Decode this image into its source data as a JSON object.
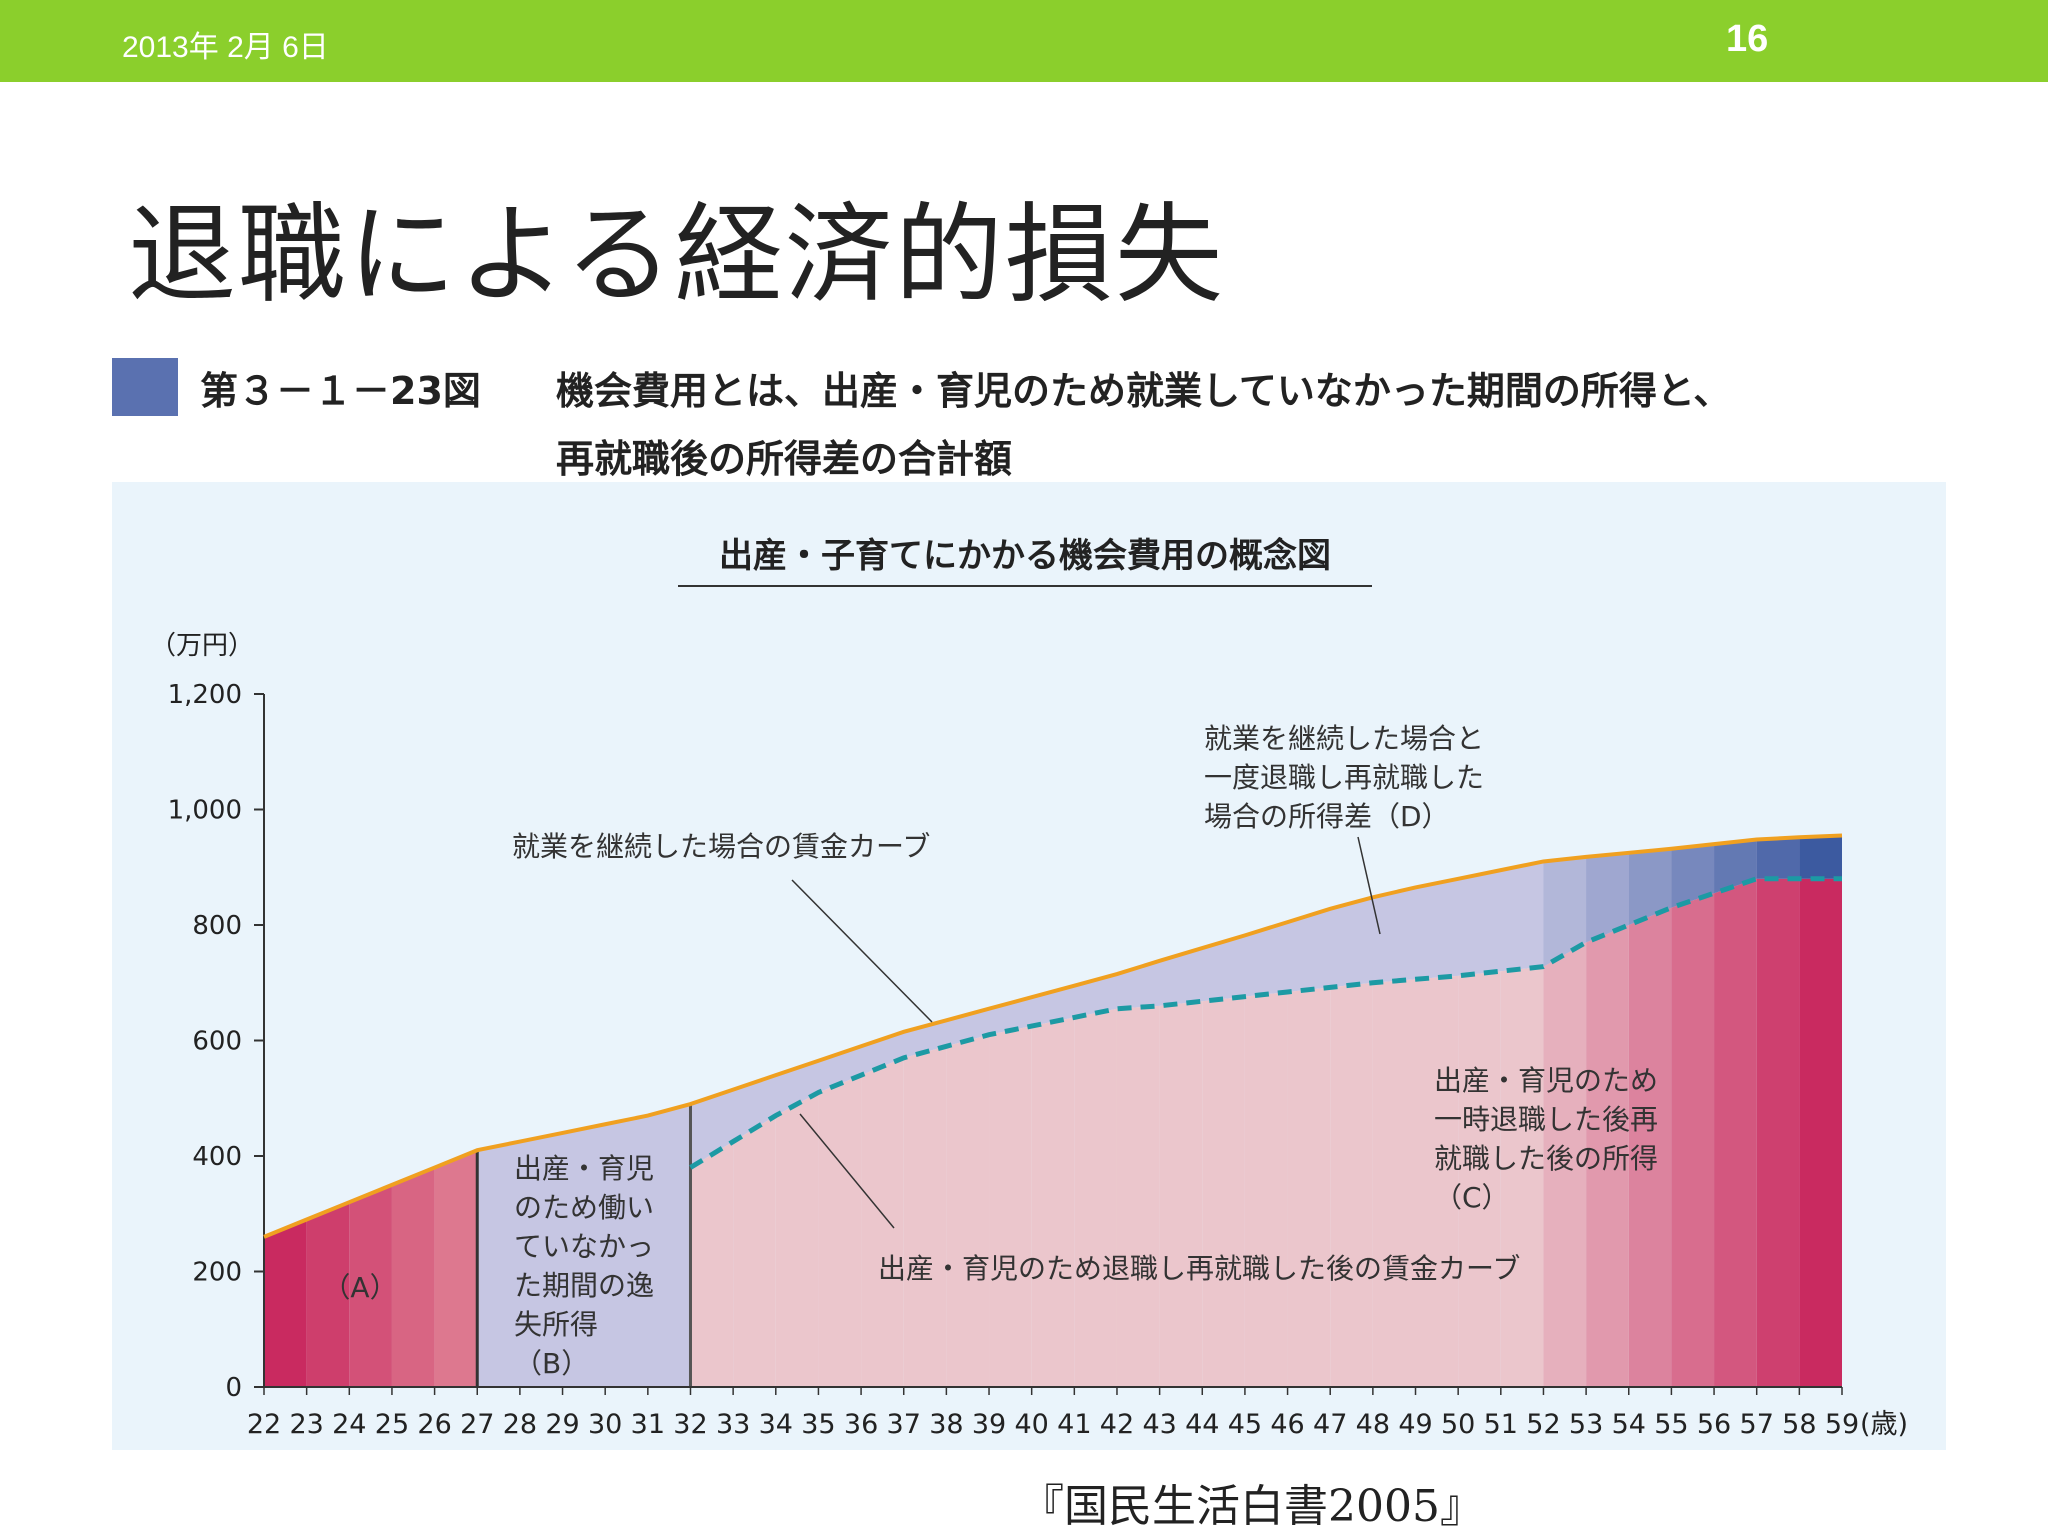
{
  "header": {
    "date": "2013年 2月 6日",
    "page_number": "16",
    "bar_color": "#8bcf2c"
  },
  "slide": {
    "title": "退職による経済的損失",
    "figure_number": "第３－１－23図",
    "caption_line1": "機会費用とは、出産・育児のため就業していなかった期間の所得と、",
    "caption_line2": "再就職後の所得差の合計額",
    "source": "『国民生活白書2005』"
  },
  "chart_data": {
    "type": "area",
    "title": "出産・子育てにかかる機会費用の概念図",
    "ylabel": "（万円）",
    "xlabel_unit": "(歳)",
    "ylim": [
      0,
      1200
    ],
    "yticks": [
      "0",
      "200",
      "400",
      "600",
      "800",
      "1,000",
      "1,200"
    ],
    "ytick_values": [
      0,
      200,
      400,
      600,
      800,
      1000,
      1200
    ],
    "x": [
      22,
      23,
      24,
      25,
      26,
      27,
      28,
      29,
      30,
      31,
      32,
      33,
      34,
      35,
      36,
      37,
      38,
      39,
      40,
      41,
      42,
      43,
      44,
      45,
      46,
      47,
      48,
      49,
      50,
      51,
      52,
      53,
      54,
      55,
      56,
      57,
      58,
      59
    ],
    "series": [
      {
        "name": "就業を継続した場合の賃金カーブ",
        "style": "solid",
        "color": "#f0a020",
        "values": [
          260,
          290,
          320,
          350,
          380,
          410,
          425,
          440,
          455,
          470,
          490,
          515,
          540,
          565,
          590,
          615,
          635,
          655,
          675,
          695,
          715,
          738,
          760,
          782,
          805,
          828,
          848,
          865,
          880,
          895,
          910,
          918,
          925,
          932,
          940,
          948,
          952,
          955
        ]
      },
      {
        "name": "出産・育児のため退職し再就職した後の賃金カーブ",
        "style": "dashed",
        "color": "#1c9aa4",
        "values": [
          null,
          null,
          null,
          null,
          null,
          null,
          null,
          null,
          null,
          null,
          380,
          425,
          470,
          510,
          540,
          570,
          590,
          610,
          625,
          640,
          655,
          660,
          668,
          676,
          684,
          692,
          700,
          706,
          712,
          720,
          728,
          770,
          800,
          830,
          855,
          880,
          880,
          880
        ]
      }
    ],
    "annotations": [
      {
        "text": "（A）"
      },
      {
        "text": "出産・育児のため働いていなかった期間の逸失所得（B）"
      },
      {
        "text": "出産・育児のため一時退職した後再就職した後の所得（C）"
      },
      {
        "text": "就業を継続した場合と一度退職し再就職した場合の所得差（D）"
      }
    ],
    "colors": {
      "panel": "#eaf4fb",
      "gap_fill": "#c6c6e3",
      "pink": "#ebc6cc",
      "magenta": "#c92a60"
    }
  }
}
